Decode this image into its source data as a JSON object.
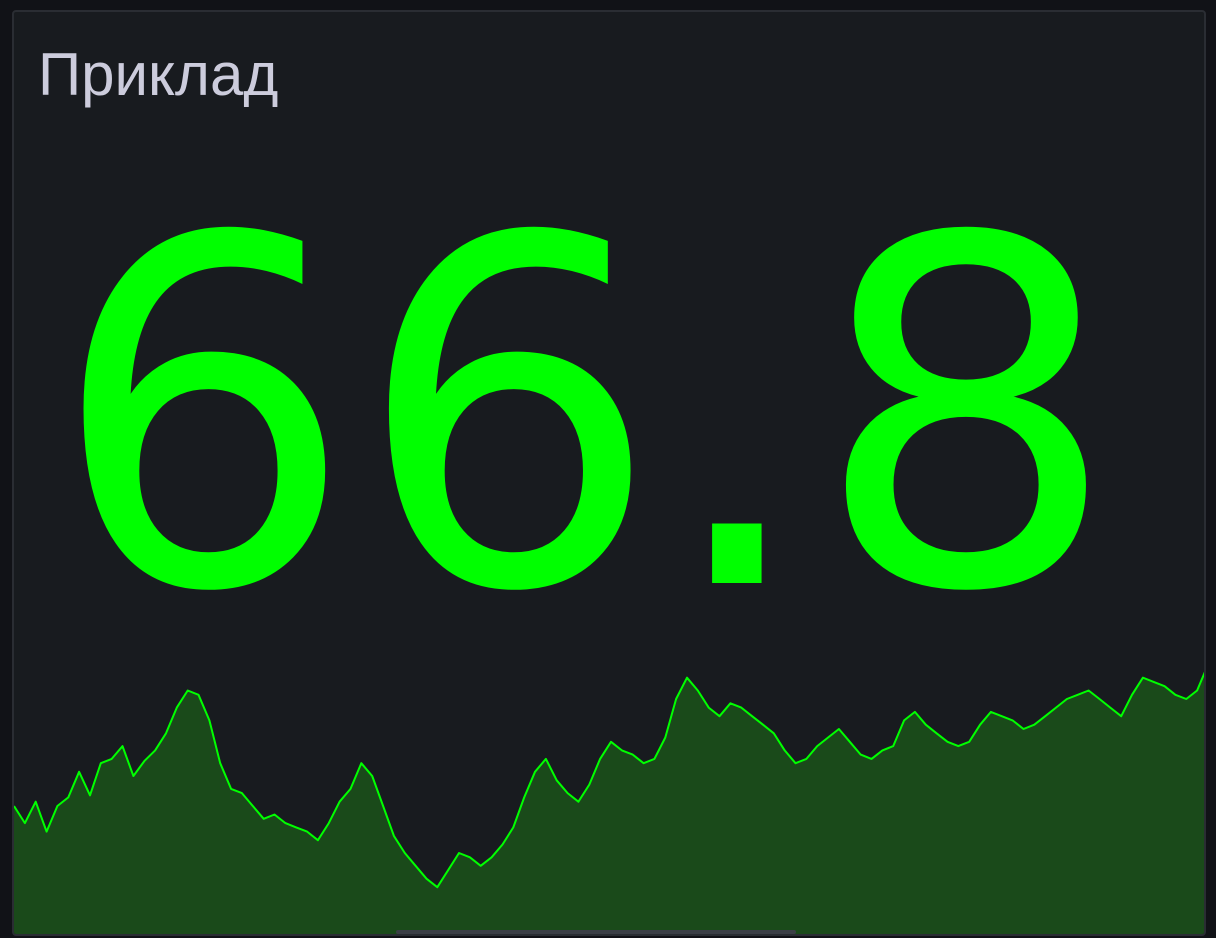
{
  "panel": {
    "title": "Приклад",
    "value": "66.8",
    "value_color": "#00ff00",
    "title_color": "#ccccdc",
    "background": "#181b1f"
  },
  "sparkline": {
    "line_color": "#00ff00",
    "fill_color": "#1a4a1a",
    "values": [
      58,
      50,
      60,
      46,
      58,
      62,
      74,
      63,
      78,
      80,
      86,
      72,
      79,
      84,
      92,
      104,
      112,
      110,
      98,
      78,
      66,
      64,
      58,
      52,
      54,
      50,
      48,
      46,
      42,
      50,
      60,
      66,
      78,
      72,
      58,
      44,
      36,
      30,
      24,
      20,
      28,
      36,
      34,
      30,
      34,
      40,
      48,
      62,
      74,
      80,
      70,
      64,
      60,
      68,
      80,
      88,
      84,
      82,
      78,
      80,
      90,
      108,
      118,
      112,
      104,
      100,
      106,
      104,
      100,
      96,
      92,
      84,
      78,
      80,
      86,
      90,
      94,
      88,
      82,
      80,
      84,
      86,
      98,
      102,
      96,
      92,
      88,
      86,
      88,
      96,
      102,
      100,
      98,
      94,
      96,
      100,
      104,
      108,
      110,
      112,
      108,
      104,
      100,
      110,
      118,
      116,
      114,
      110,
      108,
      112,
      124
    ]
  }
}
